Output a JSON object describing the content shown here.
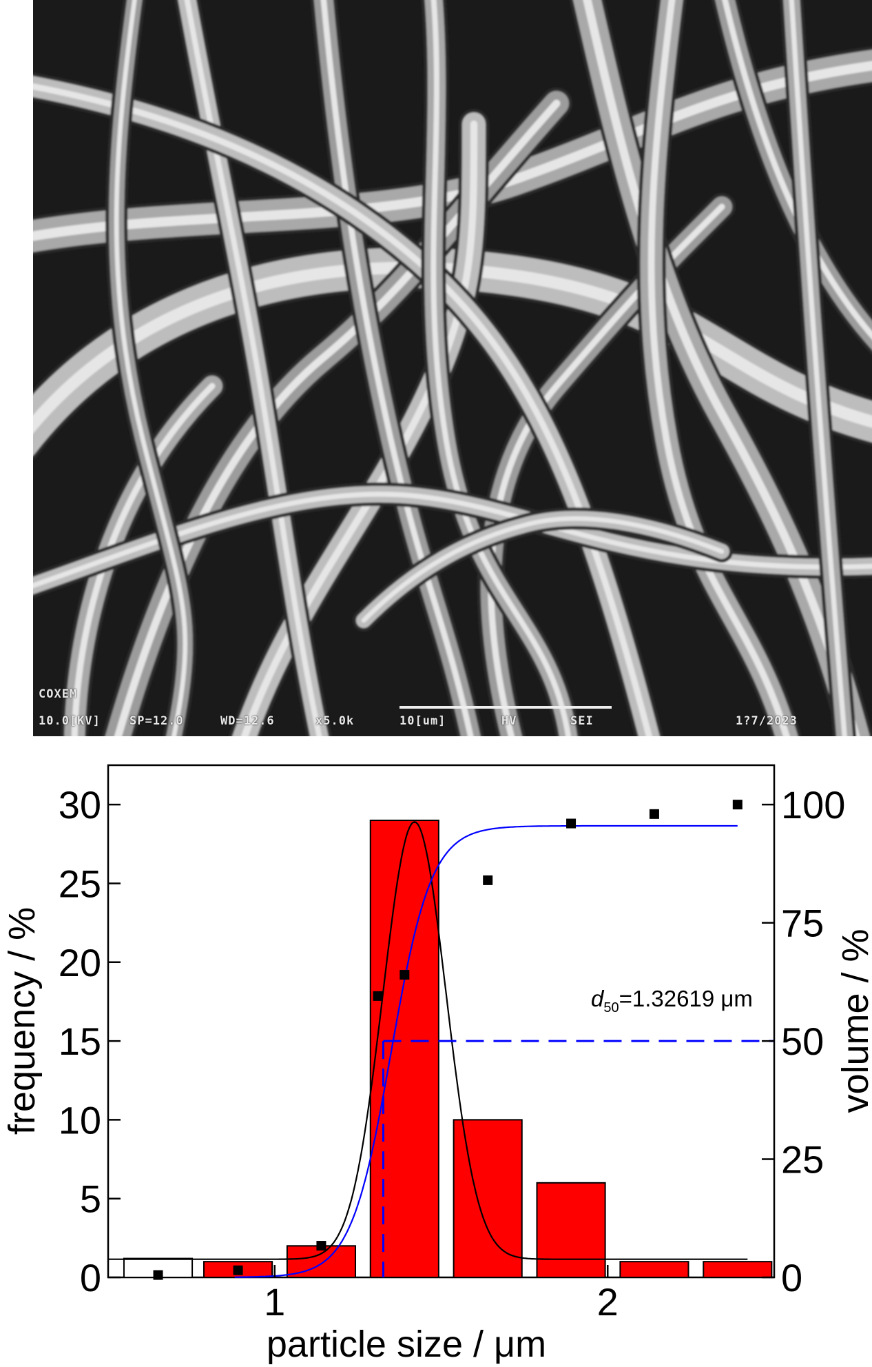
{
  "sem_image": {
    "info_line1": "COXEM",
    "info_voltage": "10.0[KV]",
    "info_sp": "SP=12.0",
    "info_wd": "WD=12.6",
    "info_mag": "x5.0k",
    "info_scale": "10[um]",
    "info_hv": "HV",
    "info_sei": "SEI",
    "info_date": "1?7/2023"
  },
  "chart_data": {
    "type": "bar",
    "xlabel": "particle size / μm",
    "ylabel_left": "frequency / %",
    "ylabel_right": "volume / %",
    "xlim": [
      0.5,
      2.5
    ],
    "xticks": [
      1,
      2
    ],
    "ylim_left": [
      0,
      32.5
    ],
    "yticks_left": [
      0,
      5,
      10,
      15,
      20,
      25,
      30
    ],
    "ylim_right": [
      0,
      108.33
    ],
    "yticks_right": [
      0,
      25,
      50,
      75,
      100
    ],
    "bars": {
      "name": "frequency",
      "color": "#ff0000",
      "categories": [
        0.65,
        0.89,
        1.14,
        1.39,
        1.64,
        1.89,
        2.14,
        2.39
      ],
      "values": [
        1.2,
        1,
        2,
        29,
        10,
        6,
        1,
        1
      ],
      "bin_width": 0.205
    },
    "cumulative_points": {
      "name": "volume",
      "x": [
        0.65,
        0.89,
        1.14,
        1.31,
        1.39,
        1.64,
        1.89,
        2.14,
        2.39
      ],
      "y": [
        0.5,
        1.5,
        6.7,
        59.5,
        64,
        84,
        96,
        98,
        100
      ]
    },
    "gaussian_fit": {
      "color": "#000000",
      "mean": 1.42,
      "sigma": 0.095,
      "peak": 28.9,
      "baseline": 1.15
    },
    "cumulative_fit": {
      "color": "#0000ff",
      "x0": 1.35,
      "k": 16.5,
      "top": 95.5
    },
    "d50": {
      "value": 1.32619,
      "volume": 50,
      "label_prefix": "d",
      "label_sub": "50",
      "label_suffix": "=1.32619 μm",
      "color": "#0000ff"
    }
  }
}
